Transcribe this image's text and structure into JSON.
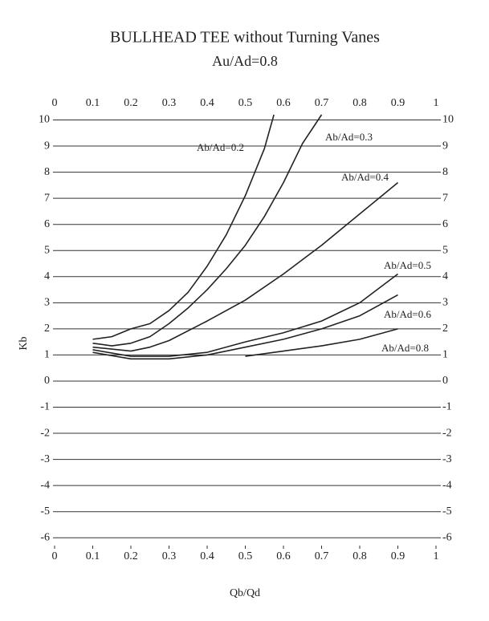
{
  "chart_data": {
    "type": "line",
    "title": "BULLHEAD TEE without Turning Vanes",
    "subtitle": "Au/Ad=0.8",
    "x_label": "Qb/Qd",
    "y_label": "Kb",
    "xlim": [
      0,
      1
    ],
    "ylim": [
      -6.3,
      10.2
    ],
    "xticks": [
      0,
      0.1,
      0.2,
      0.3,
      0.4,
      0.5,
      0.6,
      0.7,
      0.8,
      0.9,
      1
    ],
    "yticks": [
      -6,
      -5,
      -4,
      -3,
      -2,
      -1,
      0,
      1,
      2,
      3,
      4,
      5,
      6,
      7,
      8,
      9,
      10
    ],
    "grid": true,
    "series": [
      {
        "name": "Ab/Ad=0.2",
        "color": "#222222",
        "x": [
          0.1,
          0.15,
          0.2,
          0.25,
          0.3,
          0.35,
          0.4,
          0.45,
          0.5,
          0.55,
          0.575
        ],
        "values": [
          1.6,
          1.7,
          2.0,
          2.2,
          2.7,
          3.4,
          4.4,
          5.6,
          7.1,
          8.9,
          10.2
        ]
      },
      {
        "name": "Ab/Ad=0.3",
        "color": "#222222",
        "x": [
          0.1,
          0.15,
          0.2,
          0.25,
          0.3,
          0.35,
          0.4,
          0.45,
          0.5,
          0.55,
          0.6,
          0.65,
          0.7
        ],
        "values": [
          1.45,
          1.35,
          1.45,
          1.7,
          2.2,
          2.8,
          3.5,
          4.3,
          5.2,
          6.3,
          7.6,
          9.1,
          10.2
        ]
      },
      {
        "name": "Ab/Ad=0.4",
        "color": "#222222",
        "x": [
          0.1,
          0.2,
          0.25,
          0.3,
          0.4,
          0.5,
          0.6,
          0.7,
          0.8,
          0.9
        ],
        "values": [
          1.3,
          1.15,
          1.3,
          1.55,
          2.3,
          3.1,
          4.1,
          5.2,
          6.4,
          7.6
        ]
      },
      {
        "name": "Ab/Ad=0.5",
        "color": "#222222",
        "x": [
          0.1,
          0.2,
          0.3,
          0.4,
          0.5,
          0.6,
          0.7,
          0.8,
          0.9
        ],
        "values": [
          1.2,
          0.95,
          0.95,
          1.1,
          1.5,
          1.85,
          2.3,
          3.0,
          4.1
        ]
      },
      {
        "name": "Ab/Ad=0.6",
        "color": "#222222",
        "x": [
          0.1,
          0.2,
          0.3,
          0.4,
          0.5,
          0.6,
          0.7,
          0.8,
          0.9
        ],
        "values": [
          1.1,
          0.85,
          0.85,
          1.0,
          1.3,
          1.6,
          2.0,
          2.5,
          3.3
        ]
      },
      {
        "name": "Ab/Ad=0.8",
        "color": "#222222",
        "x": [
          0.5,
          0.6,
          0.7,
          0.8,
          0.9
        ],
        "values": [
          0.95,
          1.15,
          1.35,
          1.6,
          2.0
        ]
      }
    ]
  }
}
